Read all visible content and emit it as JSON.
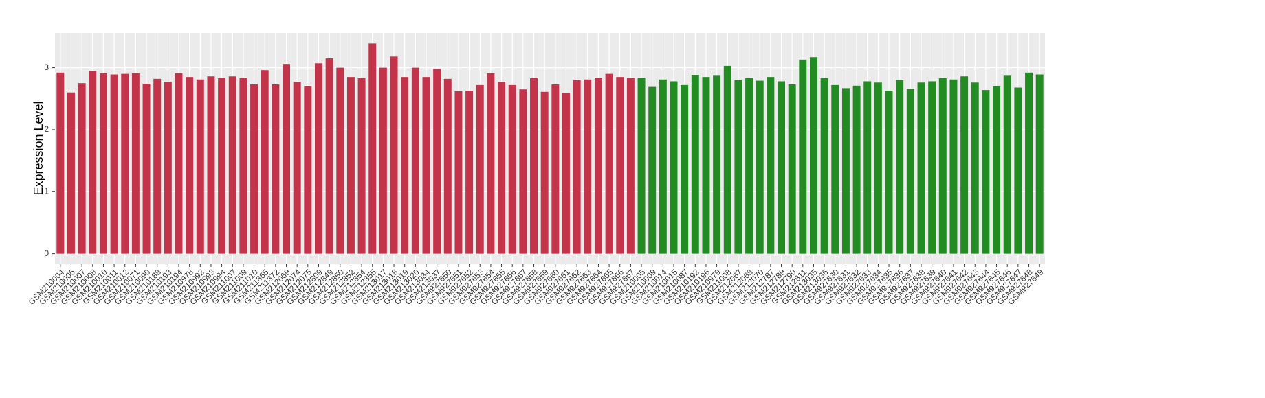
{
  "chart_data": {
    "type": "bar",
    "y_label": "Expression Level",
    "categories": [
      "GSM210004",
      "GSM210006",
      "GSM210007",
      "GSM210008",
      "GSM210010",
      "GSM210011",
      "GSM210012",
      "GSM210071",
      "GSM210090",
      "GSM210188",
      "GSM210193",
      "GSM210194",
      "GSM210978",
      "GSM210992",
      "GSM210993",
      "GSM210994",
      "GSM211007",
      "GSM211009",
      "GSM211010",
      "GSM211865",
      "GSM211872",
      "GSM212069",
      "GSM212074",
      "GSM212075",
      "GSM212809",
      "GSM212849",
      "GSM212850",
      "GSM212852",
      "GSM212854",
      "GSM212855",
      "GSM213017",
      "GSM213018",
      "GSM213019",
      "GSM213020",
      "GSM213034",
      "GSM213037",
      "GSM927650",
      "GSM927651",
      "GSM927652",
      "GSM927653",
      "GSM927654",
      "GSM927655",
      "GSM927656",
      "GSM927657",
      "GSM927658",
      "GSM927659",
      "GSM927660",
      "GSM927661",
      "GSM927662",
      "GSM927663",
      "GSM927664",
      "GSM927665",
      "GSM927666",
      "GSM927667",
      "GSM210005",
      "GSM210009",
      "GSM210014",
      "GSM210015",
      "GSM210087",
      "GSM210192",
      "GSM210196",
      "GSM210979",
      "GSM211008",
      "GSM212067",
      "GSM212068",
      "GSM212070",
      "GSM212787",
      "GSM212789",
      "GSM212790",
      "GSM212811",
      "GSM213035",
      "GSM213036",
      "GSM927630",
      "GSM927631",
      "GSM927632",
      "GSM927633",
      "GSM927634",
      "GSM927635",
      "GSM927636",
      "GSM927637",
      "GSM927638",
      "GSM927639",
      "GSM927640",
      "GSM927641",
      "GSM927642",
      "GSM927643",
      "GSM927644",
      "GSM927645",
      "GSM927646",
      "GSM927647",
      "GSM927648",
      "GSM927649"
    ],
    "values": [
      2.92,
      2.6,
      2.75,
      2.95,
      2.91,
      2.89,
      2.9,
      2.91,
      2.74,
      2.82,
      2.77,
      2.91,
      2.85,
      2.81,
      2.86,
      2.83,
      2.86,
      2.83,
      2.73,
      2.96,
      2.73,
      3.06,
      2.77,
      2.7,
      3.07,
      3.15,
      3.0,
      2.85,
      2.83,
      3.39,
      3.0,
      3.18,
      2.85,
      3.0,
      2.85,
      2.98,
      2.82,
      2.62,
      2.63,
      2.72,
      2.91,
      2.77,
      2.72,
      2.65,
      2.83,
      2.61,
      2.73,
      2.59,
      2.8,
      2.81,
      2.84,
      2.9,
      2.85,
      2.83,
      2.84,
      2.69,
      2.81,
      2.78,
      2.72,
      2.88,
      2.85,
      2.87,
      3.03,
      2.8,
      2.83,
      2.79,
      2.85,
      2.78,
      2.73,
      3.13,
      3.17,
      2.83,
      2.72,
      2.67,
      2.71,
      2.78,
      2.76,
      2.63,
      2.8,
      2.66,
      2.76,
      2.78,
      2.83,
      2.81,
      2.86,
      2.76,
      2.64,
      2.7,
      2.87,
      2.68,
      2.92,
      2.89
    ],
    "colors": [
      "#c3334a",
      "#c3334a",
      "#c3334a",
      "#c3334a",
      "#c3334a",
      "#c3334a",
      "#c3334a",
      "#c3334a",
      "#c3334a",
      "#c3334a",
      "#c3334a",
      "#c3334a",
      "#c3334a",
      "#c3334a",
      "#c3334a",
      "#c3334a",
      "#c3334a",
      "#c3334a",
      "#c3334a",
      "#c3334a",
      "#c3334a",
      "#c3334a",
      "#c3334a",
      "#c3334a",
      "#c3334a",
      "#c3334a",
      "#c3334a",
      "#c3334a",
      "#c3334a",
      "#c3334a",
      "#c3334a",
      "#c3334a",
      "#c3334a",
      "#c3334a",
      "#c3334a",
      "#c3334a",
      "#c3334a",
      "#c3334a",
      "#c3334a",
      "#c3334a",
      "#c3334a",
      "#c3334a",
      "#c3334a",
      "#c3334a",
      "#c3334a",
      "#c3334a",
      "#c3334a",
      "#c3334a",
      "#c3334a",
      "#c3334a",
      "#c3334a",
      "#c3334a",
      "#c3334a",
      "#c3334a",
      "#228b22",
      "#228b22",
      "#228b22",
      "#228b22",
      "#228b22",
      "#228b22",
      "#228b22",
      "#228b22",
      "#228b22",
      "#228b22",
      "#228b22",
      "#228b22",
      "#228b22",
      "#228b22",
      "#228b22",
      "#228b22",
      "#228b22",
      "#228b22",
      "#228b22",
      "#228b22",
      "#228b22",
      "#228b22",
      "#228b22",
      "#228b22",
      "#228b22",
      "#228b22",
      "#228b22",
      "#228b22",
      "#228b22",
      "#228b22",
      "#228b22",
      "#228b22",
      "#228b22",
      "#228b22",
      "#228b22",
      "#228b22",
      "#228b22",
      "#228b22"
    ],
    "ylim": [
      -0.17,
      3.56
    ],
    "yticks": [
      0,
      1,
      2,
      3
    ],
    "grid": true
  }
}
